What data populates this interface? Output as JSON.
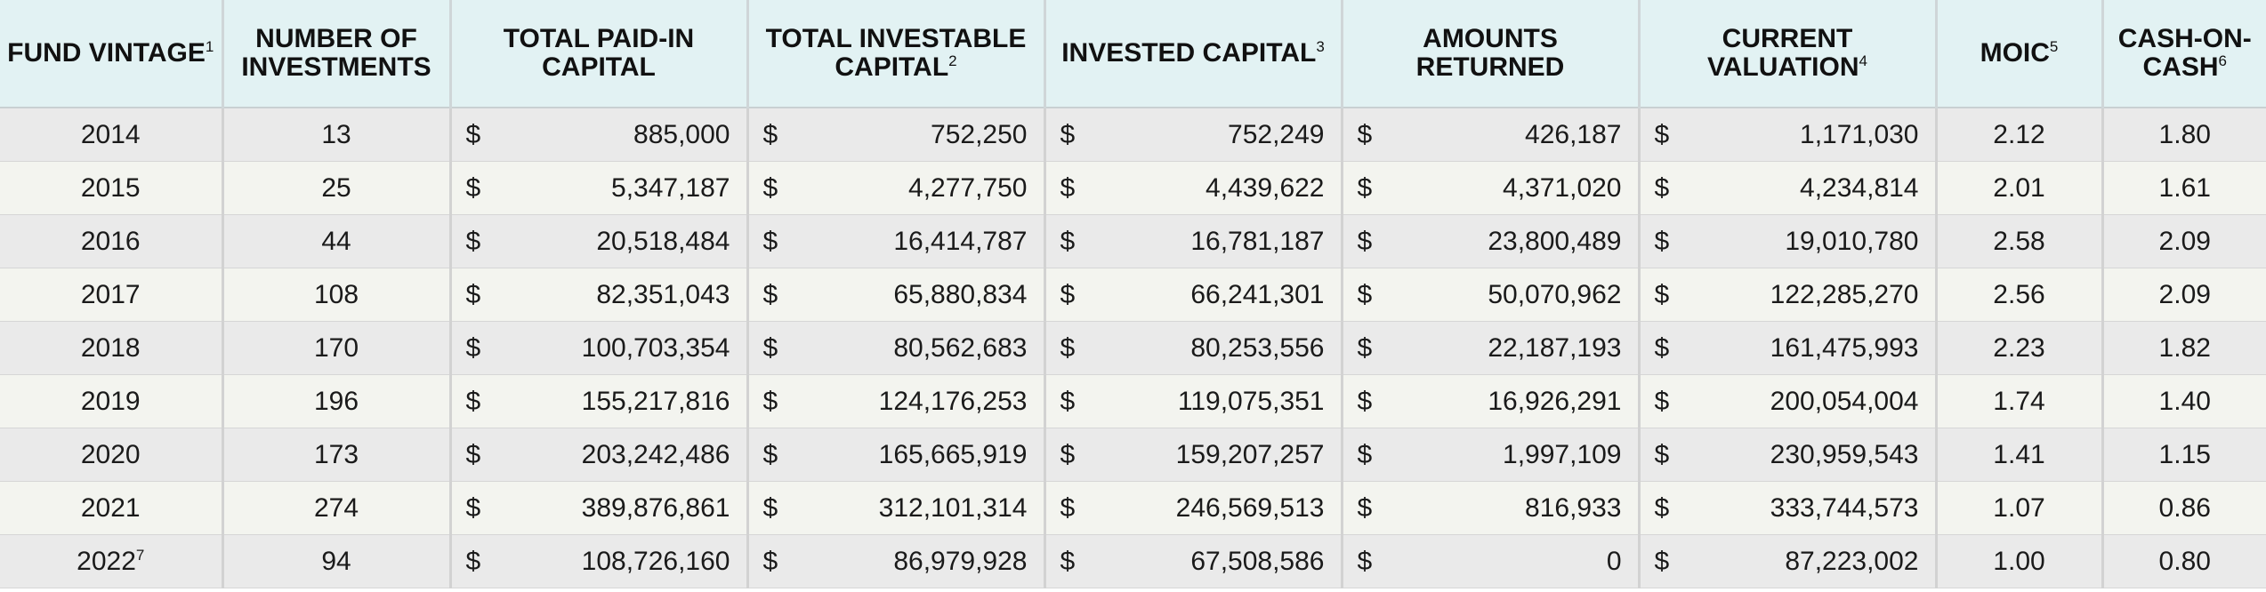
{
  "table": {
    "headers": [
      {
        "key": "fund_vintage",
        "label": "FUND VINTAGE",
        "note": "1"
      },
      {
        "key": "number_of_investments",
        "label": "NUMBER OF INVESTMENTS",
        "note": ""
      },
      {
        "key": "total_paid_in_capital",
        "label": "TOTAL PAID-IN CAPITAL",
        "note": ""
      },
      {
        "key": "total_investable_capital",
        "label": "TOTAL INVESTABLE CAPITAL",
        "note": "2"
      },
      {
        "key": "invested_capital",
        "label": "INVESTED CAPITAL",
        "note": "3"
      },
      {
        "key": "amounts_returned",
        "label": "AMOUNTS RETURNED",
        "note": ""
      },
      {
        "key": "current_valuation",
        "label": "CURRENT VALUATION",
        "note": "4"
      },
      {
        "key": "moic",
        "label": "MOIC",
        "note": "5"
      },
      {
        "key": "cash_on_cash",
        "label": "CASH-ON-CASH",
        "note": "6"
      }
    ],
    "currency_symbol": "$",
    "rows": [
      {
        "vintage": "2014",
        "vintage_note": "",
        "investments": "13",
        "paid_in": "885,000",
        "investable": "752,250",
        "invested": "752,249",
        "returned": "426,187",
        "valuation": "1,171,030",
        "moic": "2.12",
        "coc": "1.80"
      },
      {
        "vintage": "2015",
        "vintage_note": "",
        "investments": "25",
        "paid_in": "5,347,187",
        "investable": "4,277,750",
        "invested": "4,439,622",
        "returned": "4,371,020",
        "valuation": "4,234,814",
        "moic": "2.01",
        "coc": "1.61"
      },
      {
        "vintage": "2016",
        "vintage_note": "",
        "investments": "44",
        "paid_in": "20,518,484",
        "investable": "16,414,787",
        "invested": "16,781,187",
        "returned": "23,800,489",
        "valuation": "19,010,780",
        "moic": "2.58",
        "coc": "2.09"
      },
      {
        "vintage": "2017",
        "vintage_note": "",
        "investments": "108",
        "paid_in": "82,351,043",
        "investable": "65,880,834",
        "invested": "66,241,301",
        "returned": "50,070,962",
        "valuation": "122,285,270",
        "moic": "2.56",
        "coc": "2.09"
      },
      {
        "vintage": "2018",
        "vintage_note": "",
        "investments": "170",
        "paid_in": "100,703,354",
        "investable": "80,562,683",
        "invested": "80,253,556",
        "returned": "22,187,193",
        "valuation": "161,475,993",
        "moic": "2.23",
        "coc": "1.82"
      },
      {
        "vintage": "2019",
        "vintage_note": "",
        "investments": "196",
        "paid_in": "155,217,816",
        "investable": "124,176,253",
        "invested": "119,075,351",
        "returned": "16,926,291",
        "valuation": "200,054,004",
        "moic": "1.74",
        "coc": "1.40"
      },
      {
        "vintage": "2020",
        "vintage_note": "",
        "investments": "173",
        "paid_in": "203,242,486",
        "investable": "165,665,919",
        "invested": "159,207,257",
        "returned": "1,997,109",
        "valuation": "230,959,543",
        "moic": "1.41",
        "coc": "1.15"
      },
      {
        "vintage": "2021",
        "vintage_note": "",
        "investments": "274",
        "paid_in": "389,876,861",
        "investable": "312,101,314",
        "invested": "246,569,513",
        "returned": "816,933",
        "valuation": "333,744,573",
        "moic": "1.07",
        "coc": "0.86"
      },
      {
        "vintage": "2022",
        "vintage_note": "7",
        "investments": "94",
        "paid_in": "108,726,160",
        "investable": "86,979,928",
        "invested": "67,508,586",
        "returned": "0",
        "valuation": "87,223,002",
        "moic": "1.00",
        "coc": "0.80"
      }
    ]
  },
  "colors": {
    "header_bg": "#e2f2f3",
    "row_odd_bg": "#eaeaea",
    "row_even_bg": "#f3f4ef",
    "divider": "#d2d2d2"
  }
}
